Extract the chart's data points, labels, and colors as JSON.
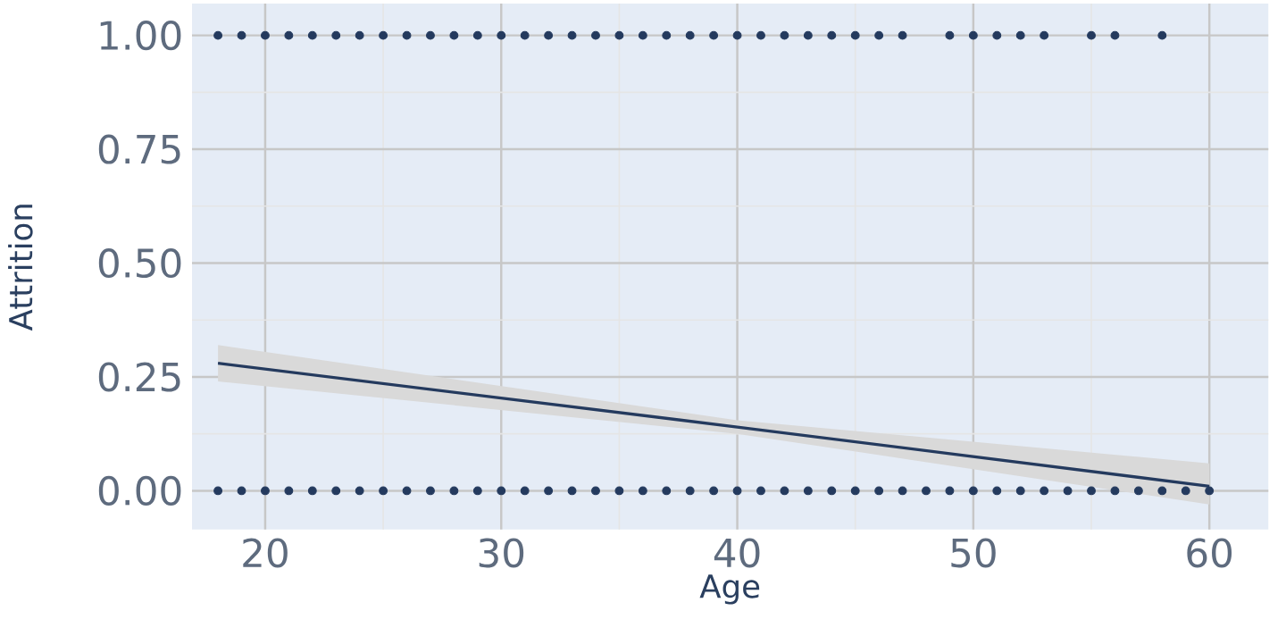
{
  "chart_data": {
    "type": "scatter",
    "xlabel": "Age",
    "ylabel": "Attrition",
    "xlim": [
      16.9,
      62.5
    ],
    "ylim": [
      -0.085,
      1.07
    ],
    "xticks": [
      20,
      30,
      40,
      50,
      60
    ],
    "yticks": [
      {
        "value": 0,
        "label": "0.00"
      },
      {
        "value": 0.25,
        "label": "0.25"
      },
      {
        "value": 0.5,
        "label": "0.50"
      },
      {
        "value": 0.75,
        "label": "0.75"
      },
      {
        "value": 1,
        "label": "1.00"
      }
    ],
    "grid": true,
    "series": [
      {
        "type": "scatter",
        "marker": "circle",
        "color": "#243a5e",
        "x": [
          18,
          19,
          20,
          21,
          22,
          23,
          24,
          25,
          26,
          27,
          28,
          29,
          30,
          31,
          32,
          33,
          34,
          35,
          36,
          37,
          38,
          39,
          40,
          41,
          42,
          43,
          44,
          45,
          46,
          47,
          49,
          50,
          51,
          52,
          53,
          55,
          56,
          58,
          18,
          19,
          20,
          21,
          22,
          23,
          24,
          25,
          26,
          27,
          28,
          29,
          30,
          31,
          32,
          33,
          34,
          35,
          36,
          37,
          38,
          39,
          40,
          41,
          42,
          43,
          44,
          45,
          46,
          47,
          48,
          49,
          50,
          51,
          52,
          53,
          54,
          55,
          56,
          57,
          58,
          59,
          60
        ],
        "values": [
          1,
          1,
          1,
          1,
          1,
          1,
          1,
          1,
          1,
          1,
          1,
          1,
          1,
          1,
          1,
          1,
          1,
          1,
          1,
          1,
          1,
          1,
          1,
          1,
          1,
          1,
          1,
          1,
          1,
          1,
          1,
          1,
          1,
          1,
          1,
          1,
          1,
          1,
          0,
          0,
          0,
          0,
          0,
          0,
          0,
          0,
          0,
          0,
          0,
          0,
          0,
          0,
          0,
          0,
          0,
          0,
          0,
          0,
          0,
          0,
          0,
          0,
          0,
          0,
          0,
          0,
          0,
          0,
          0,
          0,
          0,
          0,
          0,
          0,
          0,
          0,
          0,
          0,
          0,
          0,
          0
        ]
      },
      {
        "type": "line",
        "marker": "none",
        "color": "#243a5e",
        "x": [
          18,
          40,
          60
        ],
        "values": [
          0.28,
          0.14,
          0.01
        ],
        "lower": [
          0.24,
          0.125,
          -0.03
        ],
        "upper": [
          0.32,
          0.155,
          0.06
        ]
      }
    ]
  }
}
